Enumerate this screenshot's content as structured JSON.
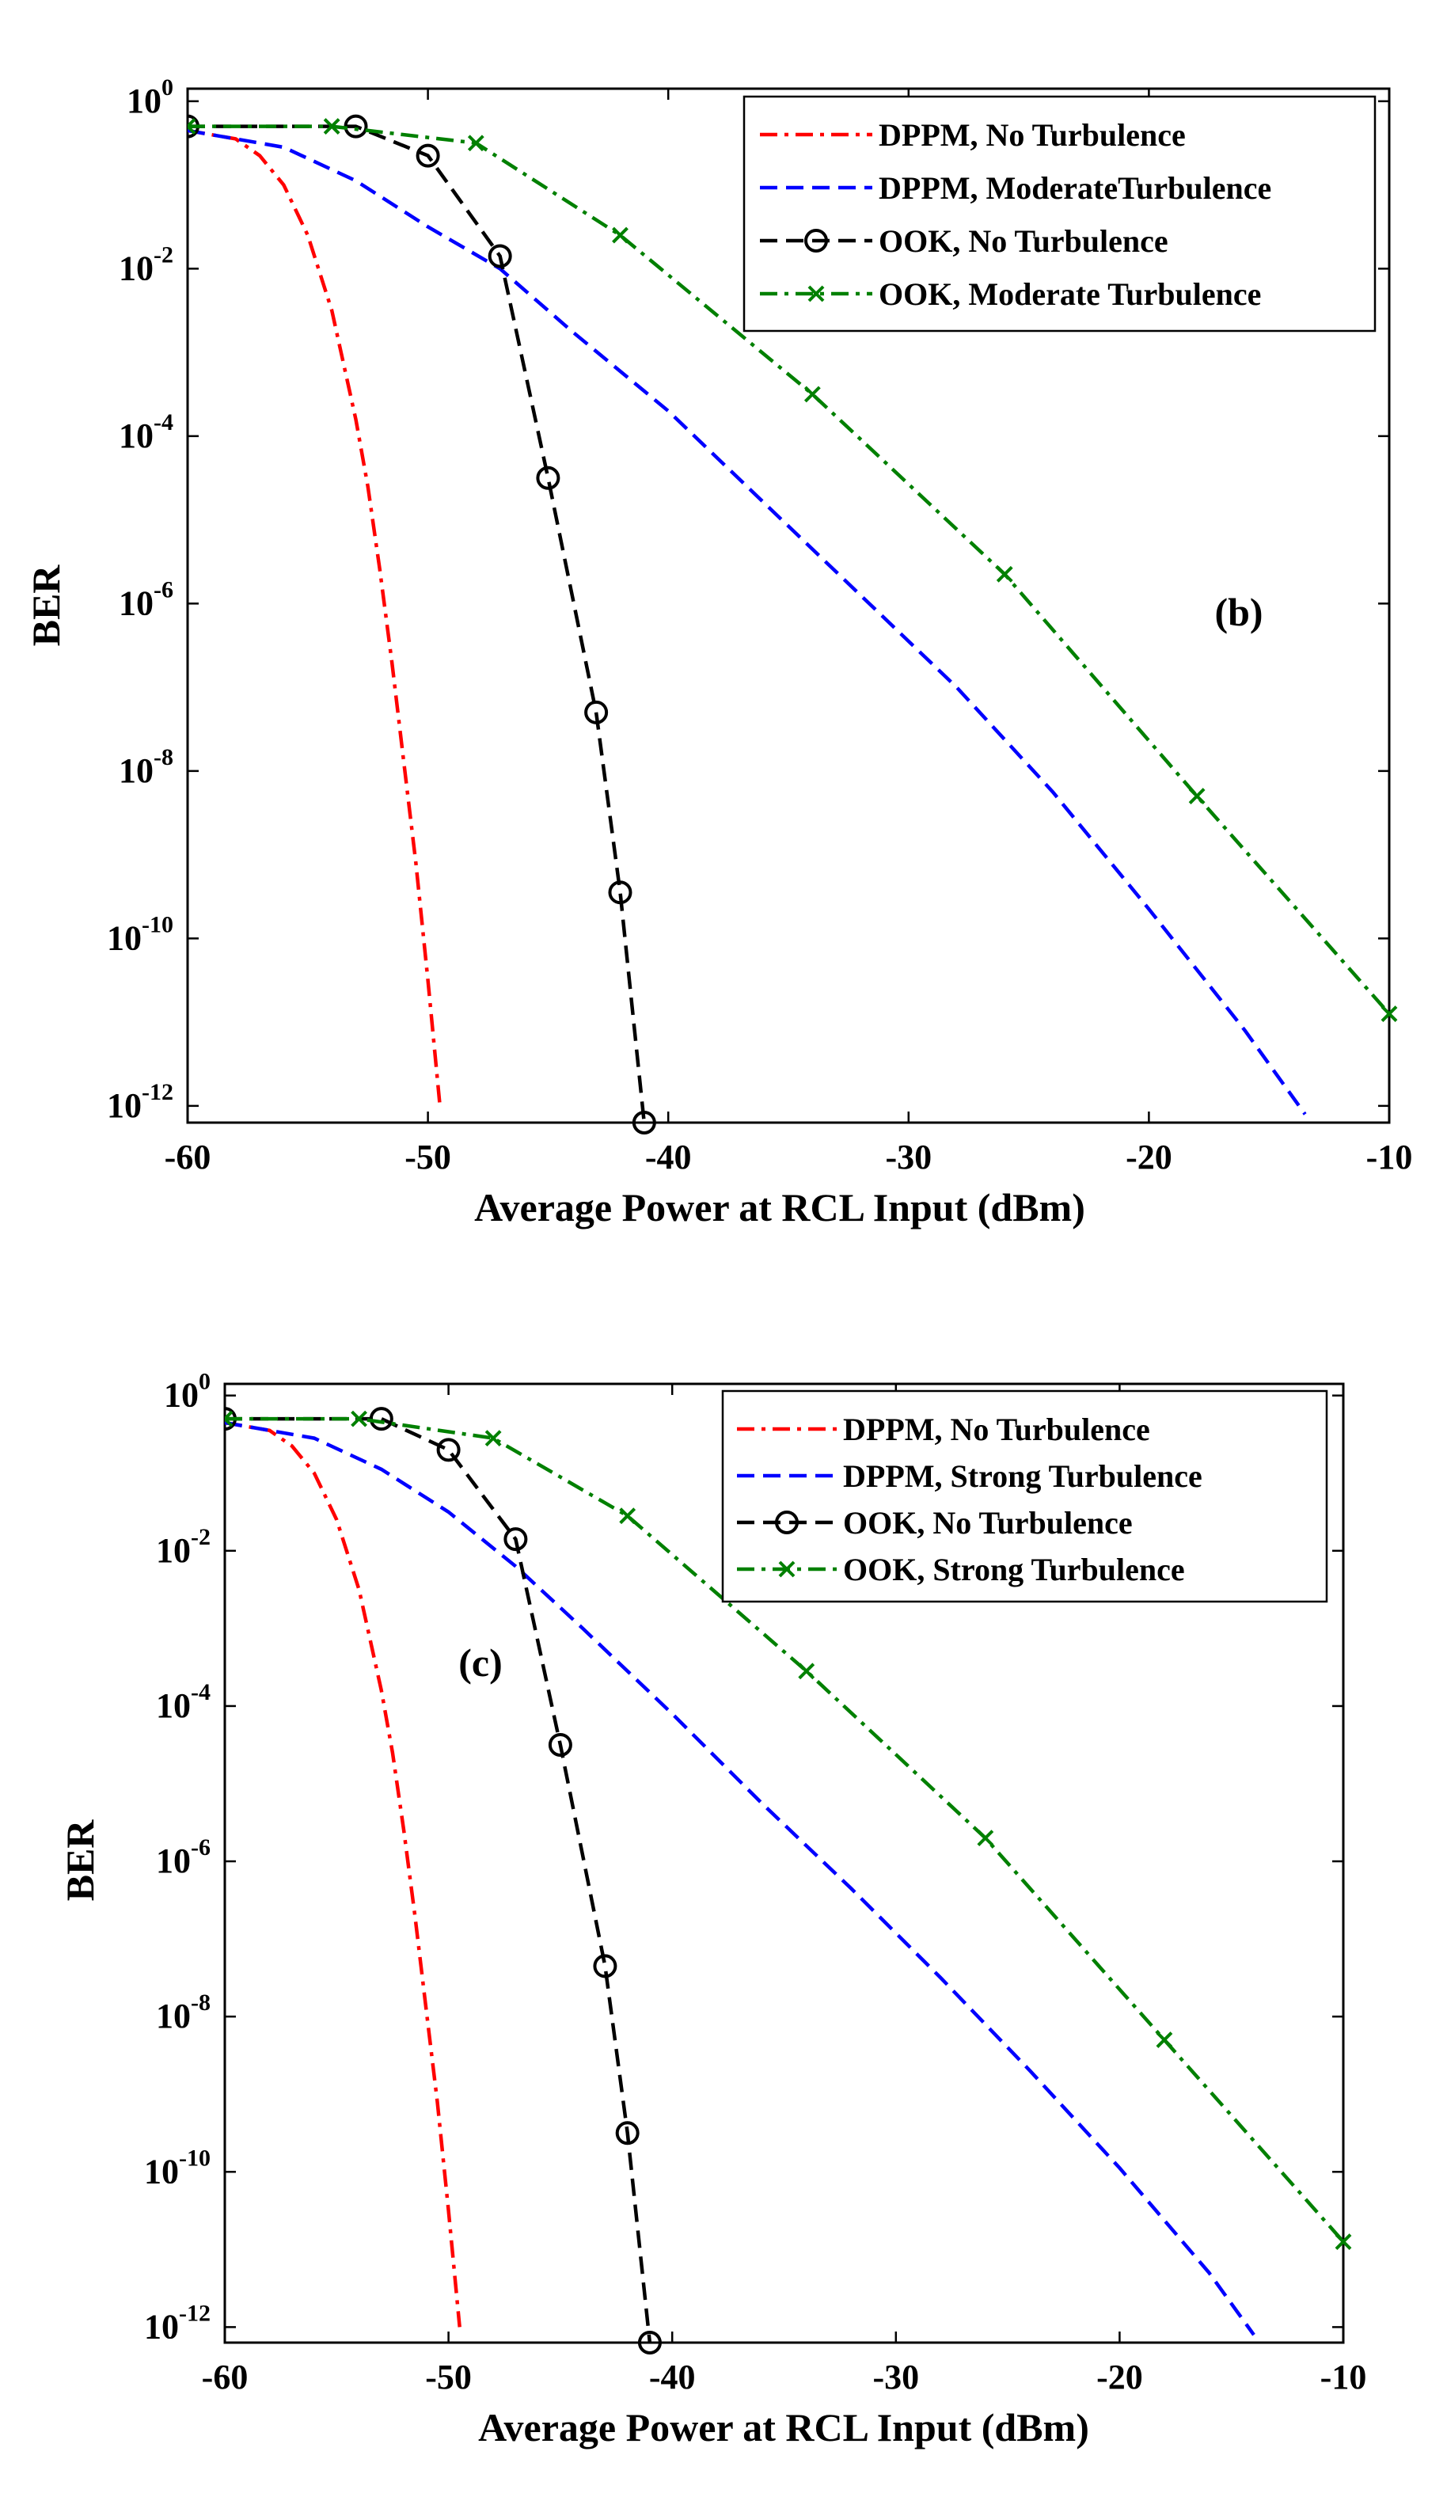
{
  "chart_data": [
    {
      "type": "line",
      "annotation": "(b)",
      "xlabel": "Average Power at RCL Input (dBm)",
      "ylabel": "BER",
      "xlim": [
        -60,
        -10
      ],
      "ylim_log10": [
        -12.2,
        0.15
      ],
      "x_ticks": [
        "-60",
        "-50",
        "-40",
        "-30",
        "-20",
        "-10"
      ],
      "y_ticks": [
        {
          "base": "10",
          "exp": "0"
        },
        {
          "base": "10",
          "exp": "-2"
        },
        {
          "base": "10",
          "exp": "-4"
        },
        {
          "base": "10",
          "exp": "-6"
        },
        {
          "base": "10",
          "exp": "-8"
        },
        {
          "base": "10",
          "exp": "-10"
        },
        {
          "base": "10",
          "exp": "-12"
        }
      ],
      "series": [
        {
          "name": "DPPM, No Turbulence",
          "color": "#ff0000",
          "dash": "dashdot",
          "marker": "none",
          "x": [
            -60,
            -58,
            -57,
            -56,
            -55,
            -54,
            -53,
            -52.5,
            -52,
            -51.5,
            -51,
            -50.5,
            -50,
            -49.5
          ],
          "log10_y": [
            -0.35,
            -0.45,
            -0.65,
            -1.0,
            -1.6,
            -2.5,
            -3.8,
            -4.6,
            -5.6,
            -6.7,
            -7.9,
            -9.1,
            -10.5,
            -12.0
          ]
        },
        {
          "name": "DPPM, ModerateTurbulence",
          "color": "#0000ff",
          "dash": "dashed",
          "marker": "none",
          "x": [
            -60,
            -56,
            -53,
            -50,
            -47,
            -44,
            -40,
            -36,
            -32,
            -28,
            -24,
            -20,
            -16,
            -13.5
          ],
          "log10_y": [
            -0.35,
            -0.55,
            -0.95,
            -1.5,
            -2.0,
            -2.75,
            -3.7,
            -4.8,
            -5.9,
            -7.0,
            -8.25,
            -9.65,
            -11.1,
            -12.1
          ]
        },
        {
          "name": "OOK, No Turbulence",
          "color": "#000000",
          "dash": "dashed",
          "marker": "circle",
          "x": [
            -60,
            -53,
            -50,
            -47,
            -45,
            -43,
            -42,
            -41
          ],
          "log10_y": [
            -0.3,
            -0.3,
            -0.65,
            -1.85,
            -4.5,
            -7.3,
            -9.45,
            -12.2
          ]
        },
        {
          "name": "OOK, Moderate Turbulence",
          "color": "#008000",
          "dash": "dashdot",
          "marker": "x",
          "x": [
            -60,
            -54,
            -48,
            -42,
            -34,
            -26,
            -18,
            -10
          ],
          "log10_y": [
            -0.3,
            -0.3,
            -0.5,
            -1.6,
            -3.5,
            -5.65,
            -8.3,
            -10.9
          ]
        }
      ],
      "legend": {
        "position": "top-right",
        "entries": [
          "DPPM, No Turbulence",
          "DPPM, ModerateTurbulence",
          "OOK, No Turbulence",
          "OOK, Moderate Turbulence"
        ]
      }
    },
    {
      "type": "line",
      "annotation": "(c)",
      "xlabel": "Average Power at RCL Input (dBm)",
      "ylabel": "BER",
      "xlim": [
        -60,
        -10
      ],
      "ylim_log10": [
        -12.2,
        0.15
      ],
      "x_ticks": [
        "-60",
        "-50",
        "-40",
        "-30",
        "-20",
        "-10"
      ],
      "y_ticks": [
        {
          "base": "10",
          "exp": "0"
        },
        {
          "base": "10",
          "exp": "-2"
        },
        {
          "base": "10",
          "exp": "-4"
        },
        {
          "base": "10",
          "exp": "-6"
        },
        {
          "base": "10",
          "exp": "-8"
        },
        {
          "base": "10",
          "exp": "-10"
        },
        {
          "base": "10",
          "exp": "-12"
        }
      ],
      "series": [
        {
          "name": "DPPM, No Turbulence",
          "color": "#ff0000",
          "dash": "dashdot",
          "marker": "none",
          "x": [
            -60,
            -58,
            -57,
            -56,
            -55,
            -54,
            -53,
            -52.5,
            -52,
            -51.5,
            -51,
            -50.5,
            -50,
            -49.5
          ],
          "log10_y": [
            -0.35,
            -0.45,
            -0.65,
            -1.0,
            -1.6,
            -2.5,
            -3.8,
            -4.6,
            -5.6,
            -6.7,
            -7.9,
            -9.1,
            -10.5,
            -12.0
          ]
        },
        {
          "name": "DPPM, Strong Turbulence",
          "color": "#0000ff",
          "dash": "dashed",
          "marker": "none",
          "x": [
            -60,
            -56,
            -53,
            -50,
            -47,
            -44,
            -40,
            -36,
            -32,
            -28,
            -24,
            -20,
            -16,
            -14
          ],
          "log10_y": [
            -0.35,
            -0.55,
            -0.95,
            -1.5,
            -2.2,
            -3.0,
            -4.1,
            -5.25,
            -6.35,
            -7.5,
            -8.7,
            -9.95,
            -11.3,
            -12.1
          ]
        },
        {
          "name": "OOK, No Turbulence",
          "color": "#000000",
          "dash": "dashed",
          "marker": "circle",
          "x": [
            -60,
            -53,
            -50,
            -47,
            -45,
            -43,
            -42,
            -41
          ],
          "log10_y": [
            -0.3,
            -0.3,
            -0.7,
            -1.85,
            -4.5,
            -7.35,
            -9.5,
            -12.2
          ]
        },
        {
          "name": "OOK, Strong Turbulence",
          "color": "#008000",
          "dash": "dashdot",
          "marker": "x",
          "x": [
            -60,
            -54,
            -48,
            -42,
            -34,
            -26,
            -18,
            -10
          ],
          "log10_y": [
            -0.3,
            -0.3,
            -0.55,
            -1.55,
            -3.55,
            -5.7,
            -8.3,
            -10.9
          ]
        }
      ],
      "legend": {
        "position": "top-right",
        "entries": [
          "DPPM, No Turbulence",
          "DPPM, Strong Turbulence",
          "OOK, No Turbulence",
          "OOK, Strong Turbulence"
        ]
      }
    }
  ]
}
